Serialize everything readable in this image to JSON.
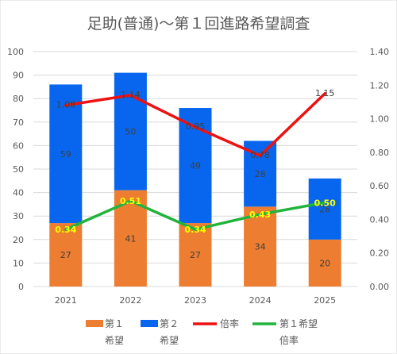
{
  "chart_data": {
    "type": "bar",
    "title": "足助(普通)〜第１回進路希望調査",
    "categories": [
      "2021",
      "2022",
      "2023",
      "2024",
      "2025"
    ],
    "ylim": [
      0,
      100
    ],
    "y2lim": [
      0,
      1.4
    ],
    "yticks": [
      "0",
      "10",
      "20",
      "30",
      "40",
      "50",
      "60",
      "70",
      "80",
      "90",
      "100"
    ],
    "y2ticks": [
      "0.00",
      "0.20",
      "0.40",
      "0.60",
      "0.80",
      "1.00",
      "1.20",
      "1.40"
    ],
    "stacked": true,
    "series": [
      {
        "name": "第１希望",
        "kind": "bar",
        "axis": "left",
        "color": "#ED7D31",
        "values": [
          27,
          41,
          27,
          34,
          20
        ],
        "labels": [
          "27",
          "41",
          "27",
          "34",
          "20"
        ]
      },
      {
        "name": "第２希望",
        "kind": "bar",
        "axis": "left",
        "color": "#0866EE",
        "values": [
          59,
          50,
          49,
          28,
          26
        ],
        "labels": [
          "59",
          "50",
          "49",
          "28",
          "26"
        ]
      },
      {
        "name": "倍率",
        "kind": "line",
        "axis": "right",
        "color": "#EE1111",
        "values": [
          1.08,
          1.14,
          0.95,
          0.78,
          1.15
        ],
        "labels": [
          "1.08",
          "1.14",
          "0.95",
          "0.78",
          "1.15"
        ]
      },
      {
        "name": "第１希望倍率",
        "kind": "line",
        "axis": "right",
        "color": "#22B33C",
        "values": [
          0.34,
          0.51,
          0.34,
          0.43,
          0.5
        ],
        "labels": [
          "0.34",
          "0.51",
          "0.34",
          "0.43",
          "0.50"
        ]
      }
    ],
    "legend": {
      "position": "bottom",
      "items": [
        {
          "lines": [
            "第１",
            "希望"
          ],
          "marker": "square",
          "color": "#ED7D31"
        },
        {
          "lines": [
            "第２",
            "希望"
          ],
          "marker": "square",
          "color": "#0866EE"
        },
        {
          "lines": [
            "倍率",
            ""
          ],
          "marker": "line",
          "color": "#EE1111"
        },
        {
          "lines": [
            "第１希望",
            "倍率"
          ],
          "marker": "line",
          "color": "#22B33C"
        }
      ]
    },
    "grid": true
  }
}
